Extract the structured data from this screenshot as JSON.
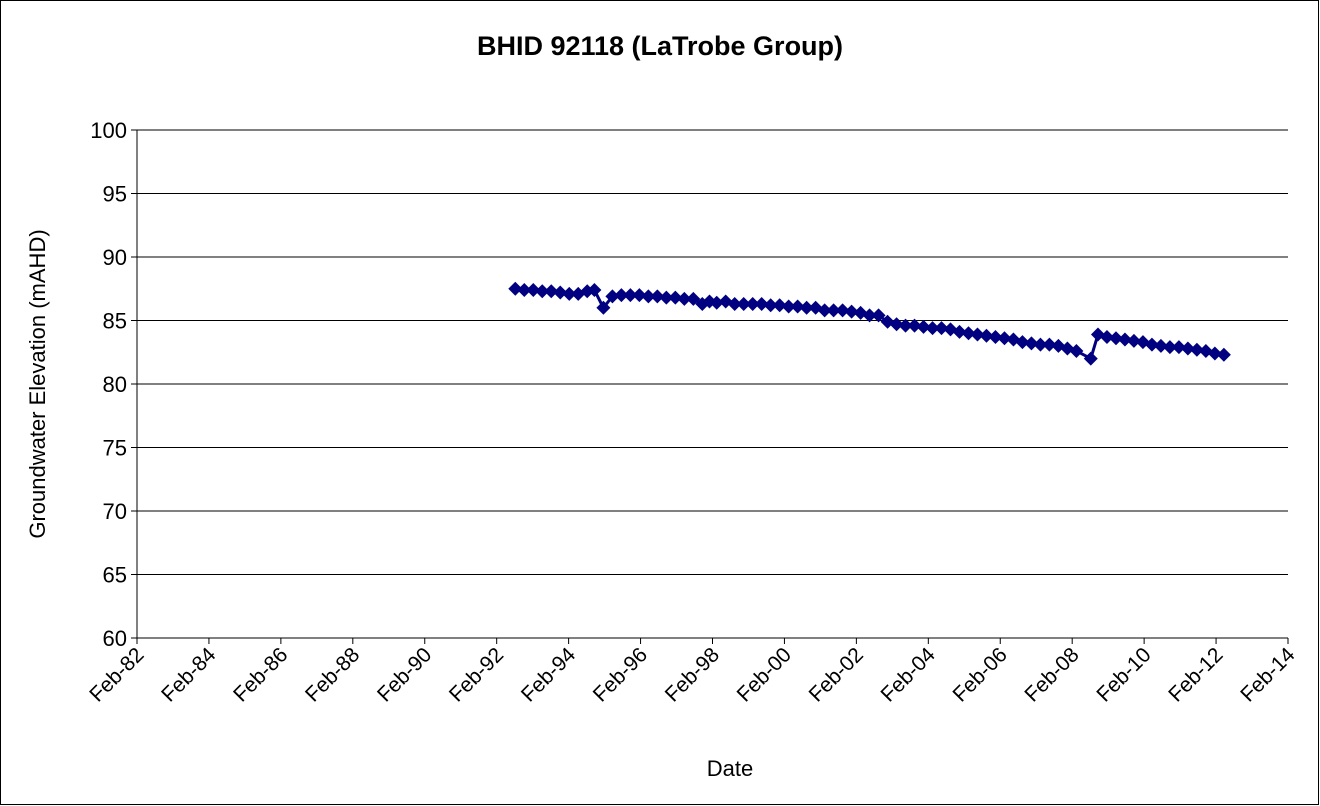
{
  "chart_data": {
    "type": "line",
    "title": "BHID 92118 (LaTrobe Group)",
    "x_label": "Date",
    "y_label": "Groundwater Elevation  (mAHD)",
    "x": [
      1992.6,
      1992.85,
      1993.1,
      1993.35,
      1993.6,
      1993.85,
      1994.1,
      1994.35,
      1994.6,
      1994.8,
      1995.05,
      1995.3,
      1995.55,
      1995.8,
      1996.05,
      1996.3,
      1996.55,
      1996.8,
      1997.05,
      1997.3,
      1997.55,
      1997.8,
      1998.0,
      1998.2,
      1998.45,
      1998.7,
      1998.95,
      1999.2,
      1999.45,
      1999.7,
      1999.95,
      2000.2,
      2000.45,
      2000.7,
      2000.95,
      2001.2,
      2001.45,
      2001.7,
      2001.95,
      2002.2,
      2002.45,
      2002.7,
      2002.95,
      2003.2,
      2003.45,
      2003.7,
      2003.95,
      2004.2,
      2004.45,
      2004.7,
      2004.95,
      2005.2,
      2005.45,
      2005.7,
      2005.95,
      2006.2,
      2006.45,
      2006.7,
      2006.95,
      2007.2,
      2007.45,
      2007.7,
      2007.95,
      2008.2,
      2008.6,
      2008.8,
      2009.05,
      2009.3,
      2009.55,
      2009.8,
      2010.05,
      2010.3,
      2010.55,
      2010.8,
      2011.05,
      2011.3,
      2011.55,
      2011.8,
      2012.05,
      2012.3
    ],
    "series": [
      {
        "name": "BHID 92118",
        "color": "#000080",
        "values": [
          87.5,
          87.4,
          87.4,
          87.3,
          87.3,
          87.2,
          87.1,
          87.1,
          87.3,
          87.4,
          86.0,
          86.9,
          87.0,
          87.0,
          87.0,
          86.9,
          86.9,
          86.8,
          86.8,
          86.7,
          86.7,
          86.3,
          86.5,
          86.4,
          86.5,
          86.3,
          86.3,
          86.3,
          86.3,
          86.2,
          86.2,
          86.1,
          86.1,
          86.0,
          86.0,
          85.8,
          85.8,
          85.8,
          85.7,
          85.6,
          85.4,
          85.4,
          84.9,
          84.7,
          84.6,
          84.6,
          84.5,
          84.4,
          84.4,
          84.3,
          84.1,
          84.0,
          83.9,
          83.8,
          83.7,
          83.6,
          83.5,
          83.3,
          83.2,
          83.1,
          83.1,
          83.0,
          82.8,
          82.6,
          82.0,
          83.9,
          83.7,
          83.6,
          83.5,
          83.4,
          83.3,
          83.1,
          83.0,
          82.9,
          82.9,
          82.8,
          82.7,
          82.6,
          82.4,
          82.3
        ]
      }
    ],
    "xlim": [
      1982.083,
      2014.083
    ],
    "xticks": [
      {
        "value": 1982.083,
        "label": "Feb-82"
      },
      {
        "value": 1984.083,
        "label": "Feb-84"
      },
      {
        "value": 1986.083,
        "label": "Feb-86"
      },
      {
        "value": 1988.083,
        "label": "Feb-88"
      },
      {
        "value": 1990.083,
        "label": "Feb-90"
      },
      {
        "value": 1992.083,
        "label": "Feb-92"
      },
      {
        "value": 1994.083,
        "label": "Feb-94"
      },
      {
        "value": 1996.083,
        "label": "Feb-96"
      },
      {
        "value": 1998.083,
        "label": "Feb-98"
      },
      {
        "value": 2000.083,
        "label": "Feb-00"
      },
      {
        "value": 2002.083,
        "label": "Feb-02"
      },
      {
        "value": 2004.083,
        "label": "Feb-04"
      },
      {
        "value": 2006.083,
        "label": "Feb-06"
      },
      {
        "value": 2008.083,
        "label": "Feb-08"
      },
      {
        "value": 2010.083,
        "label": "Feb-10"
      },
      {
        "value": 2012.083,
        "label": "Feb-12"
      },
      {
        "value": 2014.083,
        "label": "Feb-14"
      }
    ],
    "ylim": [
      60,
      100
    ],
    "yticks": [
      60,
      65,
      70,
      75,
      80,
      85,
      90,
      95,
      100
    ],
    "grid": true
  }
}
